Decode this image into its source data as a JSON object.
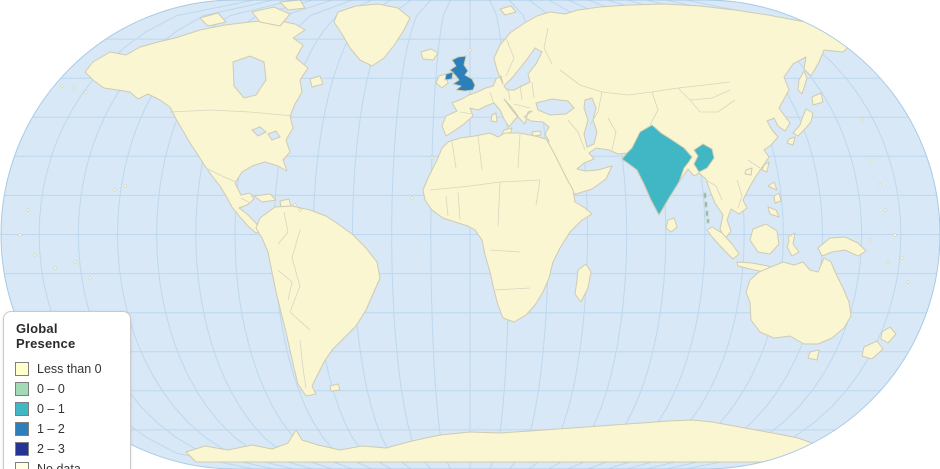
{
  "page": {
    "background_color": "#FFFFFF"
  },
  "legend": {
    "title": "Global Presence",
    "items": [
      {
        "label": "Less than 0",
        "color": "#FFFFCC"
      },
      {
        "label": "0 – 0",
        "color": "#A1DAB4"
      },
      {
        "label": "0 – 1",
        "color": "#41B6C4"
      },
      {
        "label": "1 – 2",
        "color": "#2C7FB8"
      },
      {
        "label": "2 – 3",
        "color": "#253494"
      },
      {
        "label": "No data",
        "color": "#FFFFE5"
      }
    ]
  },
  "map": {
    "kind": "world-choropleth",
    "projection": "eckert-iii-like",
    "graticule_step_deg": 15,
    "ocean_color": "#D8E8F6",
    "graticule_color": "#BDD8EE",
    "outline_color": "#A9CAE4",
    "land_color": "#FAF6D2",
    "land_border_color": "#CFCBB2",
    "internal_border_color": "#D9D5BF",
    "highlighted_regions": [
      {
        "region": "united-kingdom",
        "label": "United Kingdom",
        "bucket": "1 – 2",
        "color": "#2C7FB8"
      },
      {
        "region": "india",
        "label": "India",
        "bucket": "0 – 1",
        "color": "#41B6C4"
      }
    ]
  }
}
